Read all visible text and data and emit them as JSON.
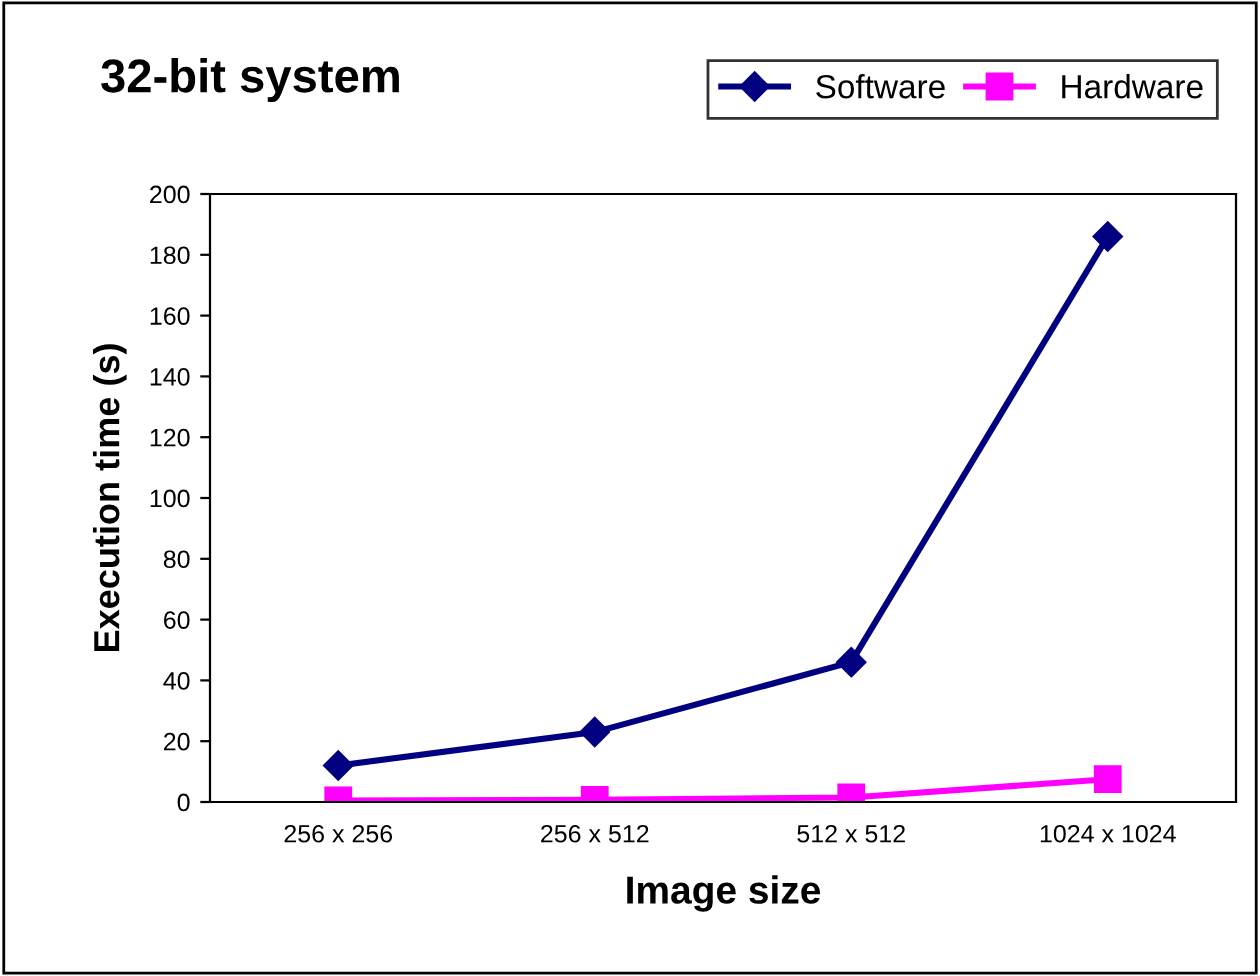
{
  "chart_data": {
    "type": "line",
    "title": "32-bit system",
    "xlabel": "Image size",
    "ylabel": "Execution time (s)",
    "categories": [
      "256 x 256",
      "256 x 512",
      "512 x 512",
      "1024 x 1024"
    ],
    "series": [
      {
        "name": "Software",
        "color": "#000080",
        "marker": "diamond",
        "values": [
          12,
          23,
          46,
          186
        ]
      },
      {
        "name": "Hardware",
        "color": "#ff00ff",
        "marker": "square",
        "values": [
          0.5,
          0.7,
          1.5,
          7.5
        ]
      }
    ],
    "ylim": [
      0,
      200
    ],
    "yticks": [
      0,
      20,
      40,
      60,
      80,
      100,
      120,
      140,
      160,
      180,
      200
    ],
    "grid": false,
    "legend": "top right",
    "line_style": "solid"
  }
}
